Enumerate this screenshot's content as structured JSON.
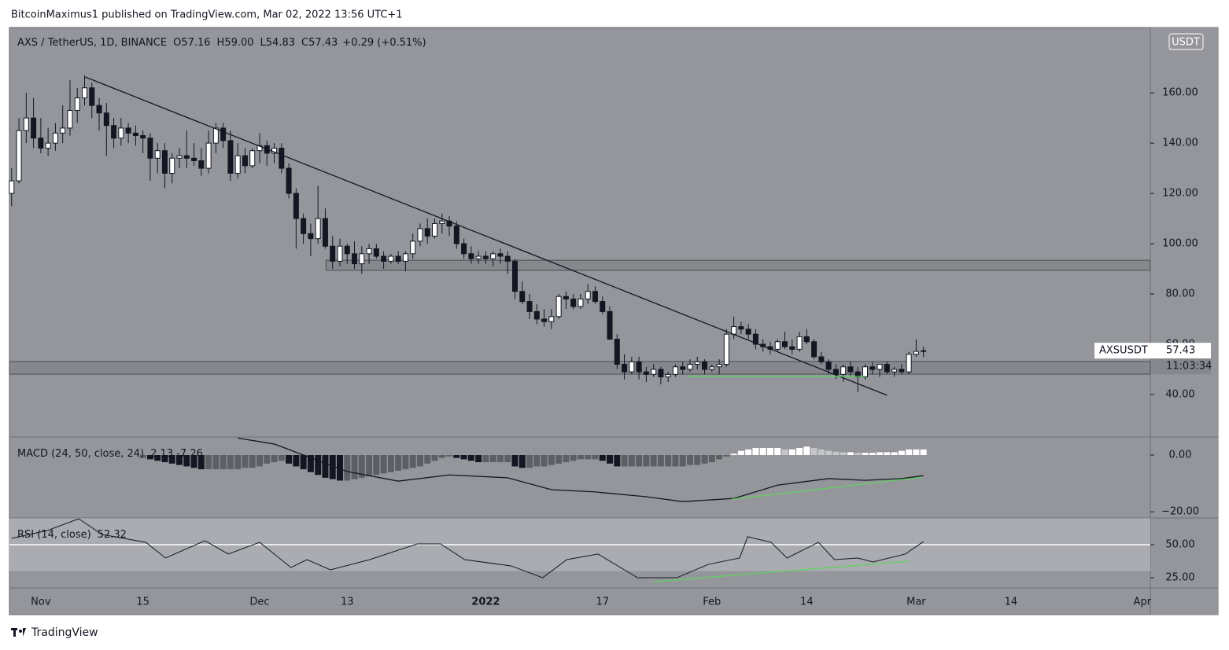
{
  "header": {
    "title": "BitcoinMaximus1 published on TradingView.com, Mar 02, 2022 13:56 UTC+1"
  },
  "footer": {
    "brand": "TradingView"
  },
  "chart_data": [
    {
      "type": "candlestick",
      "symbol": "AXS / TetherUS, 1D, BINANCE",
      "ohlc": [
        {
          "label": "O",
          "value": "57.16"
        },
        {
          "label": "H",
          "value": "59.00"
        },
        {
          "label": "L",
          "value": "54.83"
        },
        {
          "label": "C",
          "value": "57.43"
        }
      ],
      "change": "+0.29 (+0.51%)",
      "currency": "USDT",
      "last_label": {
        "name": "AXSUSDT",
        "value": 57.43,
        "value_label": "57.43",
        "countdown": "11:03:34"
      },
      "up_color": "#ffffff",
      "down_color": "#131722",
      "x": [
        -4,
        -3,
        -2,
        -1,
        0,
        1,
        2,
        3,
        4,
        5,
        6,
        7,
        8,
        9,
        10,
        11,
        12,
        13,
        14,
        15,
        16,
        17,
        18,
        19,
        20,
        21,
        22,
        23,
        24,
        25,
        26,
        27,
        28,
        29,
        30,
        31,
        32,
        33,
        34,
        35,
        36,
        37,
        38,
        39,
        40,
        41,
        42,
        43,
        44,
        45,
        46,
        47,
        48,
        49,
        50,
        51,
        52,
        53,
        54,
        55,
        56,
        57,
        58,
        59,
        60,
        61,
        62,
        63,
        64,
        65,
        66,
        67,
        68,
        69,
        70,
        71,
        72,
        73,
        74,
        75,
        76,
        77,
        78,
        79,
        80,
        81,
        82,
        83,
        84,
        85,
        86,
        87,
        88,
        89,
        90,
        91,
        92,
        93,
        94,
        95,
        96,
        97,
        98,
        99,
        100,
        101,
        102,
        103,
        104,
        105,
        106,
        107,
        108,
        109,
        110,
        111,
        112,
        113,
        114,
        115,
        116,
        117,
        118,
        119,
        120,
        121
      ],
      "open": [
        120,
        125,
        145,
        150,
        142,
        138,
        140,
        144,
        146,
        153,
        158,
        162,
        155,
        152,
        147,
        142,
        146,
        144,
        143,
        142,
        134,
        137,
        128,
        134,
        135,
        134,
        133,
        130,
        140,
        146,
        141,
        128,
        135,
        131,
        137,
        139,
        136,
        138,
        130,
        120,
        110,
        104,
        102,
        110,
        99,
        93,
        99,
        96,
        92,
        96,
        98,
        95,
        93,
        95,
        93,
        96,
        101,
        106,
        103,
        108,
        109,
        107,
        100,
        96,
        94,
        95,
        94,
        96,
        95,
        93,
        81,
        77,
        73,
        70,
        69,
        71,
        79,
        78,
        75,
        78,
        81,
        77,
        73,
        62,
        52,
        49,
        53,
        49,
        48,
        50,
        47,
        48,
        51,
        50,
        52,
        53,
        50,
        51,
        52,
        64,
        67,
        66,
        64,
        60,
        59,
        58,
        61,
        59,
        58,
        63,
        61,
        55,
        53,
        50,
        48,
        51,
        49,
        47,
        51,
        50,
        52,
        49,
        50,
        49,
        56,
        57.16
      ],
      "high": [
        130,
        150,
        160,
        158,
        150,
        146,
        148,
        155,
        165,
        162,
        167,
        164,
        158,
        156,
        150,
        150,
        148,
        147,
        145,
        144,
        140,
        140,
        136,
        138,
        145,
        140,
        138,
        145,
        148,
        148,
        145,
        140,
        138,
        138,
        144,
        141,
        140,
        140,
        132,
        122,
        112,
        108,
        123,
        114,
        103,
        102,
        100,
        101,
        99,
        100,
        100,
        97,
        96,
        97,
        97,
        104,
        108,
        110,
        110,
        112,
        111,
        109,
        102,
        99,
        97,
        97,
        97,
        98,
        97,
        94,
        85,
        80,
        76,
        74,
        74,
        80,
        81,
        80,
        80,
        84,
        83,
        79,
        75,
        64,
        56,
        55,
        55,
        51,
        52,
        51,
        49,
        52,
        53,
        54,
        55,
        54,
        52,
        54,
        66,
        71,
        69,
        68,
        66,
        62,
        61,
        62,
        65,
        62,
        65,
        66,
        62,
        57,
        54,
        52,
        52,
        53,
        51,
        52,
        53,
        52,
        53,
        51,
        52,
        57,
        62,
        59
      ],
      "low": [
        115,
        124,
        140,
        138,
        136,
        135,
        137,
        140,
        143,
        148,
        155,
        150,
        145,
        135,
        138,
        139,
        140,
        139,
        136,
        125,
        128,
        122,
        124,
        130,
        130,
        131,
        127,
        128,
        136,
        138,
        125,
        126,
        128,
        130,
        132,
        131,
        132,
        128,
        118,
        98,
        100,
        95,
        100,
        98,
        90,
        91,
        92,
        90,
        88,
        92,
        94,
        90,
        92,
        92,
        89,
        94,
        99,
        100,
        102,
        104,
        103,
        98,
        94,
        92,
        92,
        92,
        91,
        92,
        88,
        78,
        76,
        70,
        68,
        67,
        66,
        70,
        74,
        74,
        74,
        76,
        76,
        72,
        62,
        50,
        46,
        48,
        46,
        45,
        47,
        44,
        45,
        47,
        48,
        49,
        50,
        48,
        49,
        48,
        51,
        62,
        64,
        62,
        58,
        57,
        56,
        57,
        58,
        56,
        57,
        60,
        54,
        52,
        48,
        46,
        45,
        47,
        41,
        46,
        48,
        47,
        48,
        47,
        48,
        48,
        55,
        54.83
      ],
      "close": [
        125,
        145,
        150,
        142,
        138,
        140,
        144,
        146,
        153,
        158,
        162,
        155,
        152,
        147,
        142,
        146,
        144,
        143,
        142,
        134,
        137,
        128,
        134,
        135,
        134,
        133,
        130,
        140,
        146,
        141,
        128,
        135,
        131,
        137,
        139,
        136,
        138,
        130,
        120,
        110,
        104,
        102,
        110,
        99,
        93,
        99,
        96,
        92,
        96,
        98,
        95,
        93,
        95,
        93,
        96,
        101,
        106,
        103,
        108,
        109,
        107,
        100,
        96,
        94,
        95,
        94,
        96,
        95,
        93,
        81,
        77,
        73,
        70,
        69,
        71,
        79,
        78,
        75,
        78,
        81,
        77,
        73,
        62,
        52,
        49,
        53,
        49,
        48,
        50,
        47,
        48,
        51,
        50,
        52,
        53,
        50,
        51,
        52,
        64,
        67,
        66,
        64,
        60,
        59,
        58,
        61,
        59,
        58,
        63,
        61,
        55,
        53,
        50,
        48,
        51,
        49,
        47,
        51,
        50,
        52,
        49,
        50,
        49,
        56,
        57.16,
        57.43
      ],
      "zones": [
        {
          "from": 39.1,
          "low": 89.4,
          "high": 93.4
        },
        {
          "from": -4.3,
          "low": 48.1,
          "high": 53.1
        }
      ],
      "trendlines": [
        {
          "x": [
            6.1,
            116
          ],
          "values": [
            166.3,
            39.7
          ],
          "color": "#131722"
        },
        {
          "x": [
            88.8,
            113.1
          ],
          "values": [
            47.2,
            47.2
          ],
          "color": "#5fd35f"
        }
      ],
      "xlim": [
        -4.3,
        152.1
      ],
      "ylim": [
        23.4,
        186
      ],
      "xticks": [
        {
          "value": 0,
          "label": "Nov"
        },
        {
          "value": 14,
          "label": "15"
        },
        {
          "value": 30,
          "label": "Dec"
        },
        {
          "value": 42,
          "label": "13"
        },
        {
          "value": 61,
          "label": "2022"
        },
        {
          "value": 77,
          "label": "17"
        },
        {
          "value": 92,
          "label": "Feb"
        },
        {
          "value": 105,
          "label": "14"
        },
        {
          "value": 120,
          "label": "Mar"
        },
        {
          "value": 133,
          "label": "14"
        },
        {
          "value": 151,
          "label": "Apr"
        }
      ],
      "yticks": [
        {
          "value": 40,
          "label": "40.00"
        },
        {
          "value": 60,
          "label": "60.00"
        },
        {
          "value": 80,
          "label": "80.00"
        },
        {
          "value": 100,
          "label": "100.00"
        },
        {
          "value": 120,
          "label": "120.00"
        },
        {
          "value": 140,
          "label": "140.00"
        },
        {
          "value": 160,
          "label": "160.00"
        }
      ]
    },
    {
      "type": "macd",
      "title": "MACD (24, 50, close, 24)",
      "readout": "2.13 -7.26",
      "hist_x": [
        14,
        15,
        16,
        17,
        18,
        19,
        20,
        21,
        22,
        23,
        24,
        25,
        26,
        27,
        28,
        29,
        30,
        31,
        32,
        33,
        34,
        35,
        36,
        37,
        38,
        39,
        40,
        41,
        42,
        43,
        44,
        45,
        46,
        47,
        48,
        49,
        50,
        51,
        52,
        53,
        54,
        55,
        56,
        57,
        58,
        59,
        60,
        61,
        62,
        63,
        64,
        65,
        66,
        67,
        68,
        69,
        70,
        71,
        72,
        73,
        74,
        75,
        76,
        77,
        78,
        79,
        80,
        81,
        82,
        83,
        84,
        85,
        86,
        87,
        88,
        89,
        90,
        91,
        92,
        93,
        94,
        95,
        96,
        97,
        98,
        99,
        100,
        101,
        102,
        103,
        104,
        105,
        106,
        107,
        108,
        109,
        110,
        111,
        112,
        113,
        114,
        115,
        116,
        117,
        118,
        119,
        120,
        121
      ],
      "histogram": [
        -1,
        -1.5,
        -2,
        -2.5,
        -3,
        -3.5,
        -4,
        -4.5,
        -5,
        -5,
        -5,
        -5,
        -5,
        -5,
        -4.5,
        -4.5,
        -4,
        -3,
        -2.5,
        -2,
        -3,
        -4,
        -5,
        -6,
        -7,
        -8,
        -8.5,
        -9,
        -9,
        -8.5,
        -8,
        -7.5,
        -7,
        -6.5,
        -6,
        -5.5,
        -5,
        -4.5,
        -4,
        -3,
        -2,
        -1,
        -0.5,
        -1,
        -1.5,
        -2,
        -2.5,
        -2.5,
        -2.5,
        -2.5,
        -2.5,
        -4,
        -4.5,
        -4.5,
        -4,
        -4,
        -3.5,
        -3,
        -2.5,
        -2,
        -1.5,
        -1.5,
        -1.5,
        -2,
        -3,
        -4,
        -4,
        -4,
        -4,
        -4,
        -4,
        -4,
        -4,
        -4,
        -4,
        -3.5,
        -3.5,
        -3,
        -2.5,
        -1.5,
        -0.5,
        0.5,
        1.5,
        2,
        2.5,
        2.5,
        2.5,
        2.5,
        2,
        2,
        2.5,
        3,
        2.5,
        2,
        1.5,
        1.2,
        1,
        1,
        0.8,
        0.8,
        0.8,
        1,
        1,
        1,
        1.5,
        2,
        2,
        2
      ],
      "hist_colors": {
        "neg_falling": "#131722",
        "neg_rising": "#5d5f64",
        "pos_rising": "#ffffff",
        "pos_falling": "#c4c6ca"
      },
      "line": {
        "x": [
          27,
          32,
          42,
          49,
          56,
          64,
          70,
          76,
          83,
          88,
          95,
          101,
          108,
          113,
          118,
          121
        ],
        "values": [
          6,
          3.9,
          -5.8,
          -9.2,
          -7,
          -8,
          -12.2,
          -13,
          -14.7,
          -16.4,
          -15.3,
          -10.6,
          -8.3,
          -8.9,
          -8.3,
          -7.26
        ],
        "color": "#131722"
      },
      "trendline": {
        "x": [
          94.7,
          120.8
        ],
        "values": [
          -15.6,
          -7.8
        ],
        "color": "#5fd35f"
      },
      "ylim": [
        -21.9,
        6.1
      ],
      "yticks": [
        {
          "value": 0,
          "label": "0.00"
        },
        {
          "value": -20,
          "label": "−20.00"
        }
      ]
    },
    {
      "type": "rsi",
      "title": "RSI (14, close)",
      "readout": "52.32",
      "band": [
        30,
        70
      ],
      "midline": 50,
      "line": {
        "x": [
          -4,
          0.9,
          5.2,
          8.4,
          14.4,
          17.1,
          22.5,
          25.7,
          30,
          34.3,
          36.5,
          39.7,
          45.1,
          51.6,
          54.8,
          58.1,
          64.5,
          68.8,
          72.1,
          76.4,
          81.8,
          87.2,
          91.5,
          95.8,
          96.9,
          100.1,
          102.3,
          106.6,
          108.8,
          112,
          114.1,
          118.5,
          121
        ],
        "values": [
          54.8,
          60.7,
          69.6,
          57.7,
          51.8,
          39.9,
          53,
          42.9,
          51.8,
          32.7,
          38.7,
          31,
          38.7,
          50.6,
          50.6,
          38.7,
          33.9,
          25,
          38.7,
          42.9,
          25,
          25,
          35.1,
          39.9,
          56,
          51.8,
          39.9,
          51.8,
          38.7,
          39.9,
          36.9,
          42.9,
          52.32
        ],
        "color": "#131722"
      },
      "trendline": {
        "x": [
          84,
          119
        ],
        "values": [
          22,
          37.5
        ],
        "color": "#5fd35f"
      },
      "ylim": [
        17.3,
        69.6
      ],
      "yticks": [
        {
          "value": 50,
          "label": "50.00"
        },
        {
          "value": 25,
          "label": "25.00"
        }
      ]
    }
  ]
}
